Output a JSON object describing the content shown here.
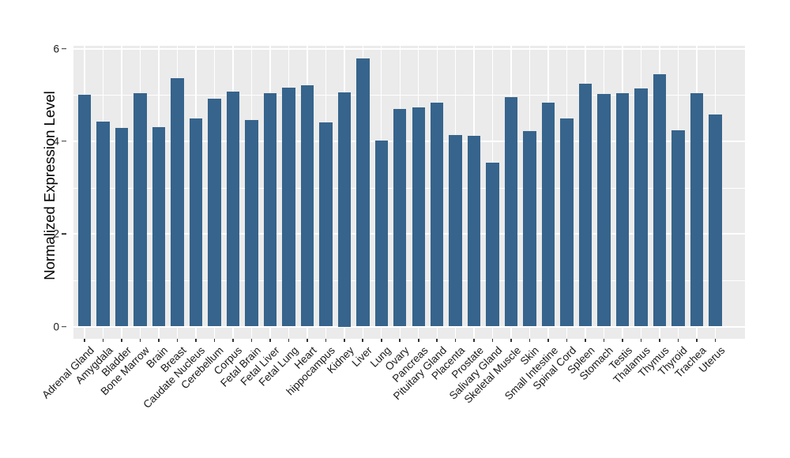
{
  "chart_data": {
    "type": "bar",
    "title": "",
    "xlabel": "",
    "ylabel": "Normalized Expression Level",
    "legend_position": "none",
    "panel_background": "#EBEBEB",
    "grid_color": "#FFFFFF",
    "grid": "major horizontal at 0/2/4/6, minor at 1/3/5, vertical at each category",
    "bar_color": "#36648C",
    "axis_text_color": "#1A1A1A",
    "bar_width_fraction": 0.7,
    "ylim": [
      0,
      6.06
    ],
    "yticks_major": [
      0,
      2,
      4,
      6
    ],
    "yticks_minor": [
      1,
      3,
      5
    ],
    "categories": [
      "Adrenal Gland",
      "Amygdala",
      "Bladder",
      "Bone Marrow",
      "Brain",
      "Breast",
      "Caudate Nucleus",
      "Cerebellum",
      "Corpus",
      "Fetal Brain",
      "Fetal Liver",
      "Fetal Lung",
      "Heart",
      "hippocampus",
      "Kidney",
      "Liver",
      "Lung",
      "Ovary",
      "Pancreas",
      "Pituitary Gland",
      "Placenta",
      "Prostate",
      "Salivary Gland",
      "Skeletal Muscle",
      "Skin",
      "Small Intestine",
      "Spinal Cord",
      "Spleen",
      "Stomach",
      "Testis",
      "Thalamus",
      "Thymus",
      "Thyroid",
      "Trachea",
      "Uterus"
    ],
    "values": [
      5.0,
      4.43,
      4.29,
      5.04,
      4.31,
      5.36,
      4.49,
      4.92,
      5.07,
      4.45,
      5.03,
      5.16,
      5.2,
      4.4,
      5.05,
      5.79,
      4.02,
      4.69,
      4.73,
      4.83,
      4.13,
      4.11,
      3.54,
      4.96,
      4.22,
      4.83,
      4.49,
      5.24,
      5.02,
      5.04,
      5.14,
      5.45,
      4.24,
      5.03,
      4.57
    ]
  }
}
